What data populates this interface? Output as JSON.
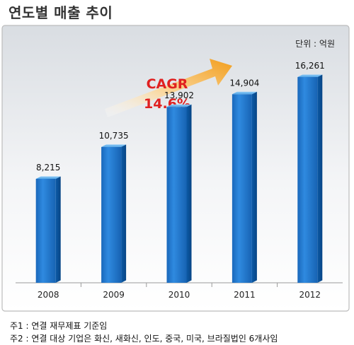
{
  "page_title": "연도별 매출 추이",
  "unit_label": "단위 : 억원",
  "cagr": {
    "label": "CAGR",
    "value": "14.6%"
  },
  "notes": [
    "주1 : 연결 재무제표 기준임",
    "주2 : 연결 대상 기업은 화신, 새화신, 인도, 중국, 미국, 브라질법인 6개사임"
  ],
  "colors": {
    "bar": "#1e74c6",
    "bar_dark": "#0b4f98",
    "bar_light": "#4fa6ea",
    "cagr_text": "#e02020",
    "arrow": "#f7a21a",
    "panel_border": "#bcbcbc"
  },
  "chart_data": {
    "type": "bar",
    "title": "연도별 매출 추이",
    "categories": [
      "2008",
      "2009",
      "2010",
      "2011",
      "2012"
    ],
    "values": [
      8215,
      10735,
      13902,
      14904,
      16261
    ],
    "value_labels": [
      "8,215",
      "10,735",
      "13,902",
      "14,904",
      "16,261"
    ],
    "unit": "억원",
    "ylim": [
      0,
      19000
    ],
    "grid": false,
    "legend": "none"
  }
}
